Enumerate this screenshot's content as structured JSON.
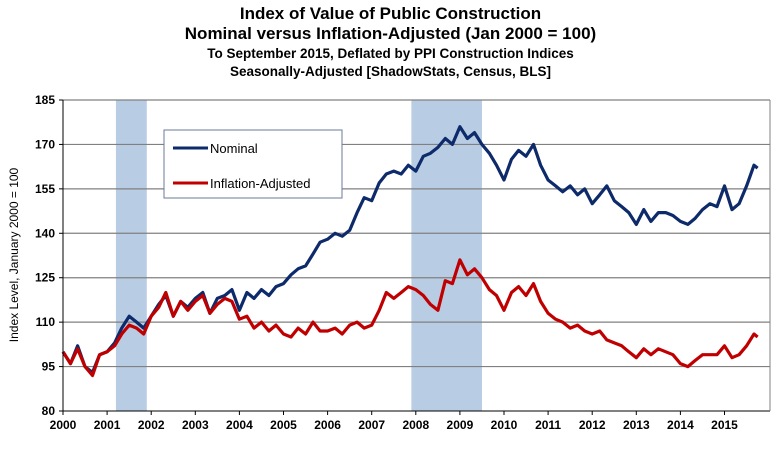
{
  "chart_data": {
    "type": "line",
    "title": "Index of Value of Public Construction",
    "subtitle_lines": [
      "Nominal versus Inflation-Adjusted  (Jan 2000 = 100)",
      "To September 2015, Deflated by PPI Construction Indices",
      "Seasonally-Adjusted [ShadowStats, Census, BLS]"
    ],
    "xlabel": "",
    "ylabel": "Index Level, January 2000 = 100",
    "ylim": [
      80,
      185
    ],
    "xlim": [
      2000,
      2015.83
    ],
    "yticks": [
      80,
      95,
      110,
      125,
      140,
      155,
      170,
      185
    ],
    "xticks": [
      "2000",
      "2001",
      "2002",
      "2003",
      "2004",
      "2005",
      "2006",
      "2007",
      "2008",
      "2009",
      "2010",
      "2011",
      "2012",
      "2013",
      "2014",
      "2015"
    ],
    "grid": "horizontal",
    "legend_position": "top-left",
    "recession_shading": [
      [
        2001.2,
        2001.9
      ],
      [
        2007.9,
        2009.5
      ]
    ],
    "series": [
      {
        "name": "Nominal",
        "color": "#0d2a6b",
        "x": [
          2000,
          2000.17,
          2000.33,
          2000.5,
          2000.67,
          2000.83,
          2001,
          2001.17,
          2001.33,
          2001.5,
          2001.67,
          2001.83,
          2002,
          2002.17,
          2002.33,
          2002.5,
          2002.67,
          2002.83,
          2003,
          2003.17,
          2003.33,
          2003.5,
          2003.67,
          2003.83,
          2004,
          2004.17,
          2004.33,
          2004.5,
          2004.67,
          2004.83,
          2005,
          2005.17,
          2005.33,
          2005.5,
          2005.67,
          2005.83,
          2006,
          2006.17,
          2006.33,
          2006.5,
          2006.67,
          2006.83,
          2007,
          2007.17,
          2007.33,
          2007.5,
          2007.67,
          2007.83,
          2008,
          2008.17,
          2008.33,
          2008.5,
          2008.67,
          2008.83,
          2009,
          2009.17,
          2009.33,
          2009.5,
          2009.67,
          2009.83,
          2010,
          2010.17,
          2010.33,
          2010.5,
          2010.67,
          2010.83,
          2011,
          2011.17,
          2011.33,
          2011.5,
          2011.67,
          2011.83,
          2012,
          2012.17,
          2012.33,
          2012.5,
          2012.67,
          2012.83,
          2013,
          2013.17,
          2013.33,
          2013.5,
          2013.67,
          2013.83,
          2014,
          2014.17,
          2014.33,
          2014.5,
          2014.67,
          2014.83,
          2015,
          2015.17,
          2015.33,
          2015.5,
          2015.67,
          2015.75
        ],
        "values": [
          100,
          96,
          102,
          95,
          93,
          99,
          100,
          103,
          108,
          112,
          110,
          108,
          112,
          116,
          119,
          112,
          117,
          115,
          118,
          120,
          113,
          118,
          119,
          121,
          114,
          120,
          118,
          121,
          119,
          122,
          123,
          126,
          128,
          129,
          133,
          137,
          138,
          140,
          139,
          141,
          147,
          152,
          151,
          157,
          160,
          161,
          160,
          163,
          161,
          166,
          167,
          169,
          172,
          170,
          176,
          172,
          174,
          170,
          167,
          163,
          158,
          165,
          168,
          166,
          170,
          163,
          158,
          156,
          154,
          156,
          153,
          155,
          150,
          153,
          156,
          151,
          149,
          147,
          143,
          148,
          144,
          147,
          147,
          146,
          144,
          143,
          145,
          148,
          150,
          149,
          156,
          148,
          150,
          156,
          163,
          162
        ]
      },
      {
        "name": "Inflation-Adjusted",
        "color": "#c00000",
        "x": [
          2000,
          2000.17,
          2000.33,
          2000.5,
          2000.67,
          2000.83,
          2001,
          2001.17,
          2001.33,
          2001.5,
          2001.67,
          2001.83,
          2002,
          2002.17,
          2002.33,
          2002.5,
          2002.67,
          2002.83,
          2003,
          2003.17,
          2003.33,
          2003.5,
          2003.67,
          2003.83,
          2004,
          2004.17,
          2004.33,
          2004.5,
          2004.67,
          2004.83,
          2005,
          2005.17,
          2005.33,
          2005.5,
          2005.67,
          2005.83,
          2006,
          2006.17,
          2006.33,
          2006.5,
          2006.67,
          2006.83,
          2007,
          2007.17,
          2007.33,
          2007.5,
          2007.67,
          2007.83,
          2008,
          2008.17,
          2008.33,
          2008.5,
          2008.67,
          2008.83,
          2009,
          2009.17,
          2009.33,
          2009.5,
          2009.67,
          2009.83,
          2010,
          2010.17,
          2010.33,
          2010.5,
          2010.67,
          2010.83,
          2011,
          2011.17,
          2011.33,
          2011.5,
          2011.67,
          2011.83,
          2012,
          2012.17,
          2012.33,
          2012.5,
          2012.67,
          2012.83,
          2013,
          2013.17,
          2013.33,
          2013.5,
          2013.67,
          2013.83,
          2014,
          2014.17,
          2014.33,
          2014.5,
          2014.67,
          2014.83,
          2015,
          2015.17,
          2015.33,
          2015.5,
          2015.67,
          2015.75
        ],
        "values": [
          100,
          96,
          101,
          95,
          92,
          99,
          100,
          102,
          106,
          109,
          108,
          106,
          112,
          115,
          120,
          112,
          117,
          114,
          117,
          119,
          113,
          116,
          118,
          117,
          111,
          112,
          108,
          110,
          107,
          109,
          106,
          105,
          108,
          106,
          110,
          107,
          107,
          108,
          106,
          109,
          110,
          108,
          109,
          114,
          120,
          118,
          120,
          122,
          121,
          119,
          116,
          114,
          124,
          123,
          131,
          126,
          128,
          125,
          121,
          119,
          114,
          120,
          122,
          119,
          123,
          117,
          113,
          111,
          110,
          108,
          109,
          107,
          106,
          107,
          104,
          103,
          102,
          100,
          98,
          101,
          99,
          101,
          100,
          99,
          96,
          95,
          97,
          99,
          99,
          99,
          102,
          98,
          99,
          102,
          106,
          105
        ]
      }
    ]
  }
}
